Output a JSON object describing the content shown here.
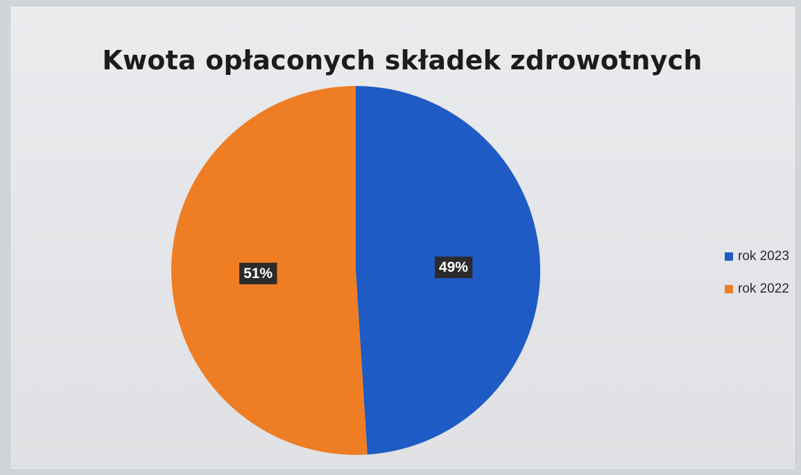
{
  "chart_data": {
    "type": "pie",
    "title": "Kwota opłaconych składek zdrowotnych",
    "categories": [
      "rok 2023",
      "rok 2022"
    ],
    "values": [
      49,
      51
    ],
    "data_labels": [
      "49%",
      "51%"
    ],
    "colors": [
      "#1f5bc4",
      "#ef7d23"
    ],
    "legend": {
      "placement": "right",
      "entries": [
        "rok 2023",
        "rok 2022"
      ]
    }
  }
}
